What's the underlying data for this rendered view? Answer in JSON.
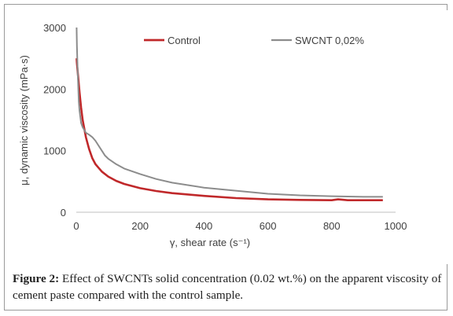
{
  "figure": {
    "caption_label": "Figure 2:",
    "caption_text": " Effect of SWCNTs solid concentration (0.02 wt.%) on the apparent viscosity of cement paste compared with the control sample."
  },
  "chart_data": {
    "type": "line",
    "xlabel": "γ, shear rate (s⁻¹)",
    "ylabel": "μ, dynamic viscosity (mPa·s)",
    "xlim": [
      0,
      1000
    ],
    "ylim": [
      0,
      3000
    ],
    "x_ticks": [
      "0",
      "200",
      "400",
      "600",
      "800",
      "1000"
    ],
    "y_ticks": [
      "0",
      "1000",
      "2000",
      "3000"
    ],
    "grid": false,
    "legend_position": "top",
    "series": [
      {
        "name": "Control",
        "color": "#c0282a",
        "x": [
          1,
          2,
          5,
          10,
          15,
          20,
          30,
          40,
          50,
          60,
          80,
          100,
          125,
          150,
          200,
          250,
          300,
          400,
          500,
          600,
          700,
          800,
          820,
          850,
          900,
          960
        ],
        "y": [
          2500,
          2420,
          2250,
          1950,
          1700,
          1500,
          1220,
          1030,
          880,
          780,
          660,
          580,
          510,
          460,
          390,
          345,
          310,
          265,
          230,
          210,
          200,
          195,
          210,
          195,
          195,
          195
        ]
      },
      {
        "name": "SWCNT 0,02%",
        "color": "#8c8c8c",
        "x": [
          1,
          2,
          5,
          8,
          10,
          15,
          20,
          30,
          40,
          50,
          60,
          70,
          80,
          90,
          100,
          125,
          150,
          200,
          250,
          300,
          400,
          500,
          600,
          700,
          800,
          850,
          900,
          960
        ],
        "y": [
          3000,
          2700,
          2200,
          1800,
          1650,
          1450,
          1380,
          1290,
          1260,
          1220,
          1160,
          1080,
          1000,
          920,
          870,
          780,
          710,
          620,
          540,
          480,
          400,
          350,
          300,
          275,
          260,
          255,
          250,
          250
        ]
      }
    ]
  }
}
